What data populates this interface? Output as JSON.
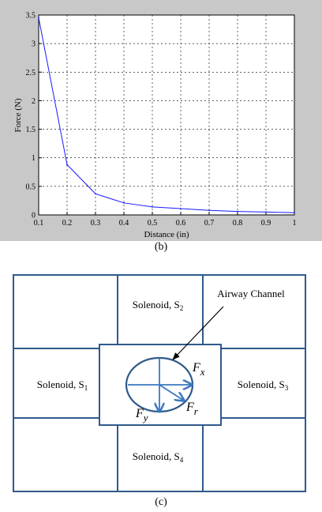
{
  "chart_data": {
    "type": "line",
    "xlabel": "Distance (in)",
    "ylabel": "Force (N)",
    "xlim": [
      0.1,
      1.0
    ],
    "ylim": [
      0,
      3.5
    ],
    "grid": true,
    "x_ticks": [
      "0.1",
      "0.2",
      "0.3",
      "0.4",
      "0.5",
      "0.6",
      "0.7",
      "0.8",
      "0.9",
      "1"
    ],
    "y_ticks": [
      "0",
      "0.5",
      "1",
      "1.5",
      "2",
      "2.5",
      "3",
      "3.5"
    ],
    "series": [
      {
        "color": "#1a1aff",
        "x": [
          0.1,
          0.2,
          0.3,
          0.4,
          0.5,
          0.6,
          0.7,
          0.8,
          0.9,
          1.0
        ],
        "y": [
          3.45,
          0.88,
          0.37,
          0.21,
          0.14,
          0.11,
          0.08,
          0.06,
          0.05,
          0.04
        ]
      }
    ]
  },
  "captions": {
    "b": "(b)",
    "c": "(c)"
  },
  "diagram": {
    "solenoid_1": {
      "name": "Solenoid, S",
      "sub": "1"
    },
    "solenoid_2": {
      "name": "Solenoid, S",
      "sub": "2"
    },
    "solenoid_3": {
      "name": "Solenoid, S",
      "sub": "3"
    },
    "solenoid_4": {
      "name": "Solenoid, S",
      "sub": "4"
    },
    "airway_label": "Airway Channel",
    "fx": {
      "main": "F",
      "sub": "x"
    },
    "fy": {
      "main": "F",
      "sub": "y"
    },
    "fr": {
      "main": "F",
      "sub": "r"
    },
    "colors": {
      "frame": "#2f5a8a",
      "arrow": "#3a78c0"
    }
  }
}
